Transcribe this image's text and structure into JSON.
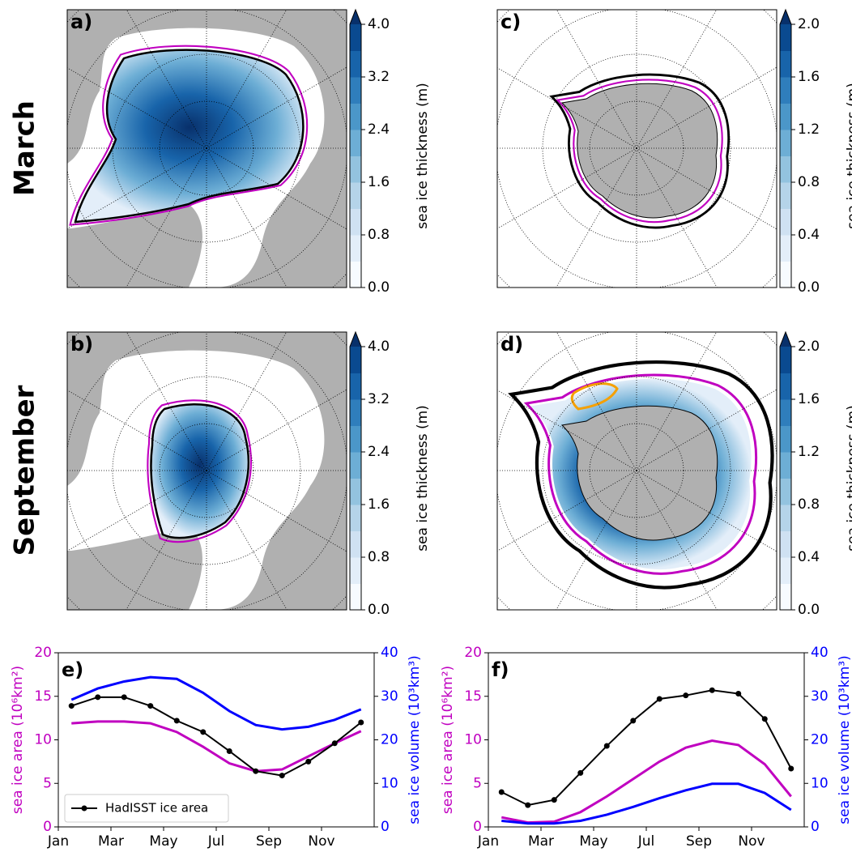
{
  "row_labels": [
    "March",
    "September"
  ],
  "chart_data": [
    {
      "type": "map",
      "label": "a)",
      "colorbar": {
        "label": "sea ice thickness (m)",
        "lim": [
          0,
          4
        ],
        "ticks": [
          {
            "value": 0,
            "label": "0.0"
          },
          0.8,
          1.6,
          2.4,
          3.2,
          {
            "value": 4,
            "label": "4.0"
          }
        ],
        "colors": [
          "#f7fbff",
          "#e3eef9",
          "#cfe1f2",
          "#b5d4e9",
          "#93c3df",
          "#6daed5",
          "#4b97c9",
          "#2f7ebc",
          "#1864aa",
          "#0a4a90"
        ],
        "extend_color": "#08306b"
      }
    },
    {
      "type": "map",
      "label": "b)",
      "colorbar": {
        "label": "sea ice thickness (m)",
        "lim": [
          0,
          4
        ],
        "ticks": [
          {
            "value": 0,
            "label": "0.0"
          },
          0.8,
          1.6,
          2.4,
          3.2,
          {
            "value": 4,
            "label": "4.0"
          }
        ],
        "colors": [
          "#f7fbff",
          "#e3eef9",
          "#cfe1f2",
          "#b5d4e9",
          "#93c3df",
          "#6daed5",
          "#4b97c9",
          "#2f7ebc",
          "#1864aa",
          "#0a4a90"
        ],
        "extend_color": "#08306b"
      }
    },
    {
      "type": "map",
      "label": "c)",
      "colorbar": {
        "label": "sea ice thickness (m)",
        "lim": [
          0,
          2
        ],
        "ticks": [
          {
            "value": 0,
            "label": "0.0"
          },
          0.4,
          0.8,
          1.2,
          1.6,
          {
            "value": 2,
            "label": "2.0"
          }
        ],
        "colors": [
          "#f7fbff",
          "#e3eef9",
          "#cfe1f2",
          "#b5d4e9",
          "#93c3df",
          "#6daed5",
          "#4b97c9",
          "#2f7ebc",
          "#1864aa",
          "#0a4a90"
        ],
        "extend_color": "#08306b"
      }
    },
    {
      "type": "map",
      "label": "d)",
      "colorbar": {
        "label": "sea ice thickness (m)",
        "lim": [
          0,
          2
        ],
        "ticks": [
          {
            "value": 0,
            "label": "0.0"
          },
          0.4,
          0.8,
          1.2,
          1.6,
          {
            "value": 2,
            "label": "2.0"
          }
        ],
        "colors": [
          "#f7fbff",
          "#e3eef9",
          "#cfe1f2",
          "#b5d4e9",
          "#93c3df",
          "#6daed5",
          "#4b97c9",
          "#2f7ebc",
          "#1864aa",
          "#0a4a90"
        ],
        "extend_color": "#08306b"
      }
    },
    {
      "type": "line",
      "label": "e)",
      "x": [
        0.5,
        1.5,
        2.5,
        3.5,
        4.5,
        5.5,
        6.5,
        7.5,
        8.5,
        9.5,
        10.5,
        11.5
      ],
      "xlim": [
        0,
        12
      ],
      "xticks": [
        {
          "value": 0,
          "label": "Jan"
        },
        {
          "value": 2,
          "label": "Mar"
        },
        {
          "value": 4,
          "label": "May"
        },
        {
          "value": 6,
          "label": "Jul"
        },
        {
          "value": 8,
          "label": "Sep"
        },
        {
          "value": 10,
          "label": "Nov"
        }
      ],
      "ylabel": "sea ice area (10⁶km²)",
      "ylabel_color": "#c000c0",
      "ylim": [
        0,
        20
      ],
      "yticks": [
        0,
        5,
        10,
        15,
        20
      ],
      "y2label": "sea ice volume (10³km³)",
      "y2label_color": "#0000ff",
      "y2lim": [
        0,
        40
      ],
      "y2ticks": [
        0,
        10,
        20,
        30,
        40
      ],
      "legend": "lower left",
      "series": [
        {
          "color": "#c000c0",
          "values": [
            11.9,
            12.1,
            12.1,
            11.9,
            10.9,
            9.2,
            7.3,
            6.4,
            6.6,
            8.1,
            9.6,
            11.0
          ]
        },
        {
          "name": "HadISST ice area",
          "color": "#000000",
          "marker": true,
          "values": [
            13.9,
            14.9,
            14.9,
            13.9,
            12.2,
            10.9,
            8.7,
            6.4,
            5.9,
            7.5,
            9.6,
            12.0
          ]
        },
        {
          "axis": "y2",
          "color": "#0000ff",
          "values": [
            29.2,
            31.8,
            33.4,
            34.4,
            34.0,
            30.8,
            26.6,
            23.4,
            22.4,
            23.0,
            24.6,
            27.0
          ]
        }
      ]
    },
    {
      "type": "line",
      "label": "f)",
      "x": [
        0.5,
        1.5,
        2.5,
        3.5,
        4.5,
        5.5,
        6.5,
        7.5,
        8.5,
        9.5,
        10.5,
        11.5
      ],
      "xlim": [
        0,
        12
      ],
      "xticks": [
        {
          "value": 0,
          "label": "Jan"
        },
        {
          "value": 2,
          "label": "Mar"
        },
        {
          "value": 4,
          "label": "May"
        },
        {
          "value": 6,
          "label": "Jul"
        },
        {
          "value": 8,
          "label": "Sep"
        },
        {
          "value": 10,
          "label": "Nov"
        }
      ],
      "ylabel": "sea ice area (10⁶km²)",
      "ylabel_color": "#c000c0",
      "ylim": [
        0,
        20
      ],
      "yticks": [
        0,
        5,
        10,
        15,
        20
      ],
      "y2label": "sea ice volume (10³km³)",
      "y2label_color": "#0000ff",
      "y2lim": [
        0,
        40
      ],
      "y2ticks": [
        0,
        10,
        20,
        30,
        40
      ],
      "series": [
        {
          "color": "#c000c0",
          "values": [
            1.1,
            0.5,
            0.6,
            1.7,
            3.5,
            5.5,
            7.5,
            9.1,
            9.9,
            9.4,
            7.2,
            3.5
          ]
        },
        {
          "color": "#000000",
          "marker": true,
          "values": [
            4.0,
            2.5,
            3.1,
            6.2,
            9.3,
            12.2,
            14.7,
            15.1,
            15.7,
            15.3,
            12.4,
            6.7
          ]
        },
        {
          "axis": "y2",
          "color": "#0000ff",
          "values": [
            1.4,
            0.8,
            0.8,
            1.4,
            2.8,
            4.6,
            6.6,
            8.4,
            9.9,
            9.9,
            7.8,
            3.9
          ]
        }
      ]
    }
  ]
}
